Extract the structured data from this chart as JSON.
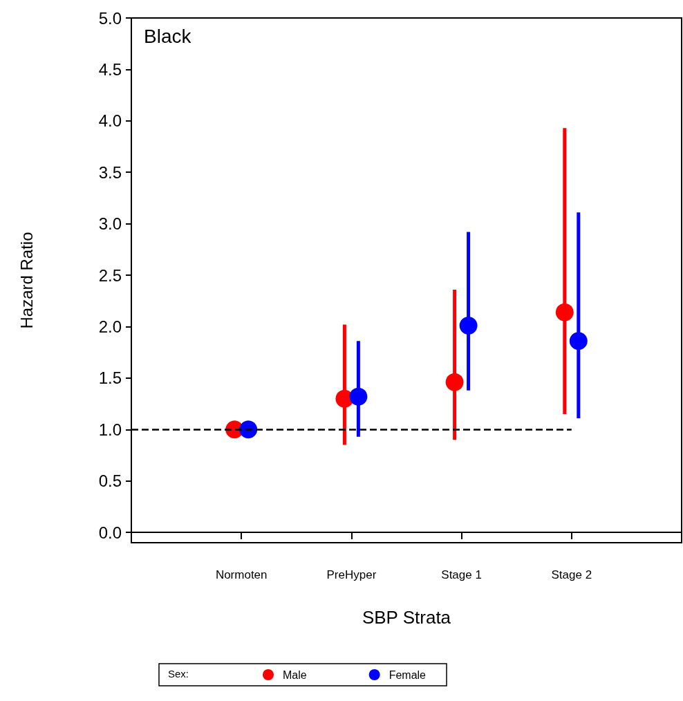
{
  "chart_data": {
    "type": "scatter",
    "xlabel": "SBP Strata",
    "ylabel": "Hazard Ratio",
    "legend_title": "Sex:",
    "annotations": [
      "Black"
    ],
    "categories": [
      "Normoten",
      "PreHyper",
      "Stage 1",
      "Stage 2"
    ],
    "series": [
      {
        "name": "Male",
        "color": "#ff0000",
        "values": [
          1.0,
          1.3,
          1.46,
          2.14
        ],
        "errors": [
          null,
          [
            0.85,
            2.02
          ],
          [
            0.9,
            2.36
          ],
          [
            1.15,
            3.93
          ]
        ]
      },
      {
        "name": "Female",
        "color": "#0000ff",
        "values": [
          1.0,
          1.32,
          2.01,
          1.86
        ],
        "errors": [
          null,
          [
            0.93,
            1.86
          ],
          [
            1.38,
            2.92
          ],
          [
            1.11,
            3.11
          ]
        ]
      }
    ],
    "ylim": [
      -0.1,
      5.0
    ],
    "yticks": [
      {
        "value": 0,
        "label": "0.0"
      },
      {
        "value": 0.5,
        "label": "0.5"
      },
      {
        "value": 1,
        "label": "1.0"
      },
      {
        "value": 1.5,
        "label": "1.5"
      },
      {
        "value": 2,
        "label": "2.0"
      },
      {
        "value": 2.5,
        "label": "2.5"
      },
      {
        "value": 3,
        "label": "3.0"
      },
      {
        "value": 3.5,
        "label": "3.5"
      },
      {
        "value": 4,
        "label": "4.0"
      },
      {
        "value": 4.5,
        "label": "4.5"
      },
      {
        "value": 5,
        "label": "5.0"
      }
    ],
    "ref_lines": [
      {
        "axis": "y",
        "value": 1.0,
        "color": "#000000",
        "line_style": "dashed"
      }
    ],
    "marker": "circle",
    "grid": false,
    "legend": "bottom"
  }
}
